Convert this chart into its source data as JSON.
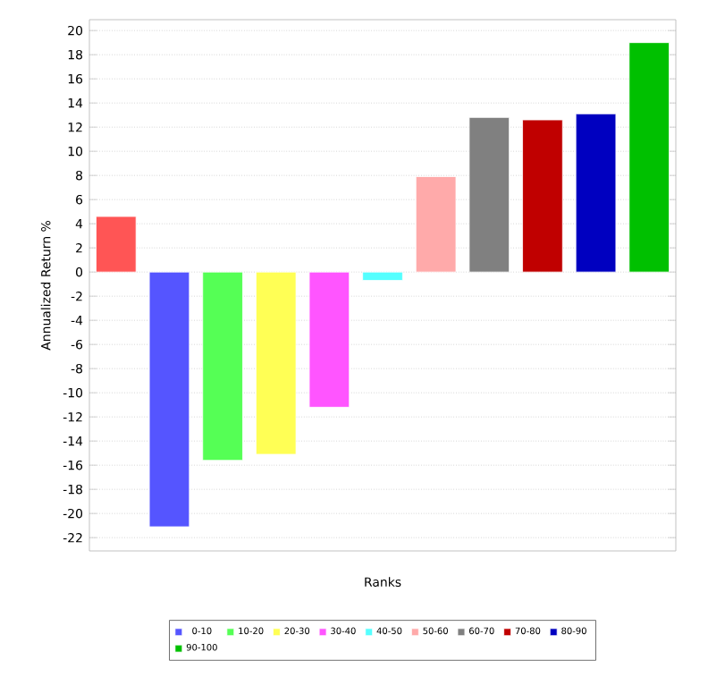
{
  "chart_data": {
    "type": "bar",
    "xlabel": "Ranks",
    "ylabel": "Annualized Return %",
    "categories": [
      null,
      null,
      null,
      null,
      null,
      null,
      null,
      null,
      null,
      null,
      null
    ],
    "series": [
      {
        "color": "#ff5555",
        "values": [
          4.6,
          null,
          null,
          null,
          null,
          null,
          null,
          null,
          null,
          null,
          null
        ]
      },
      {
        "name": "0-10",
        "color": "#5555ff",
        "values": [
          null,
          -21.1,
          null,
          null,
          null,
          null,
          null,
          null,
          null,
          null,
          null
        ]
      },
      {
        "name": "10-20",
        "color": "#55ff55",
        "values": [
          null,
          null,
          -15.6,
          null,
          null,
          null,
          null,
          null,
          null,
          null,
          null
        ]
      },
      {
        "name": "20-30",
        "color": "#ffff55",
        "values": [
          null,
          null,
          null,
          -15.1,
          null,
          null,
          null,
          null,
          null,
          null,
          null
        ]
      },
      {
        "name": "30-40",
        "color": "#ff55ff",
        "values": [
          null,
          null,
          null,
          null,
          -11.2,
          null,
          null,
          null,
          null,
          null,
          null
        ]
      },
      {
        "name": "40-50",
        "color": "#55ffff",
        "values": [
          null,
          null,
          null,
          null,
          null,
          -0.7,
          null,
          null,
          null,
          null,
          null
        ]
      },
      {
        "name": "50-60",
        "color": "#ffaaaa",
        "values": [
          null,
          null,
          null,
          null,
          null,
          null,
          7.9,
          null,
          null,
          null,
          null
        ]
      },
      {
        "name": "60-70",
        "color": "#808080",
        "values": [
          null,
          null,
          null,
          null,
          null,
          null,
          null,
          12.8,
          null,
          null,
          null
        ]
      },
      {
        "name": "70-80",
        "color": "#c00000",
        "values": [
          null,
          null,
          null,
          null,
          null,
          null,
          null,
          null,
          12.6,
          null,
          null
        ]
      },
      {
        "name": "80-90",
        "color": "#0000c0",
        "values": [
          null,
          null,
          null,
          null,
          null,
          null,
          null,
          null,
          null,
          13.1,
          null
        ]
      },
      {
        "name": "90-100",
        "color": "#00c000",
        "values": [
          null,
          null,
          null,
          null,
          null,
          null,
          null,
          null,
          null,
          null,
          19.0
        ]
      }
    ],
    "ylim": [
      -23.1,
      20.9
    ],
    "yticks": [
      -22,
      -20,
      -18,
      -16,
      -14,
      -12,
      -10,
      -8,
      -6,
      -4,
      -2,
      0,
      2,
      4,
      6,
      8,
      10,
      12,
      14,
      16,
      18,
      20
    ],
    "grid": "y",
    "legend": "bottom"
  }
}
